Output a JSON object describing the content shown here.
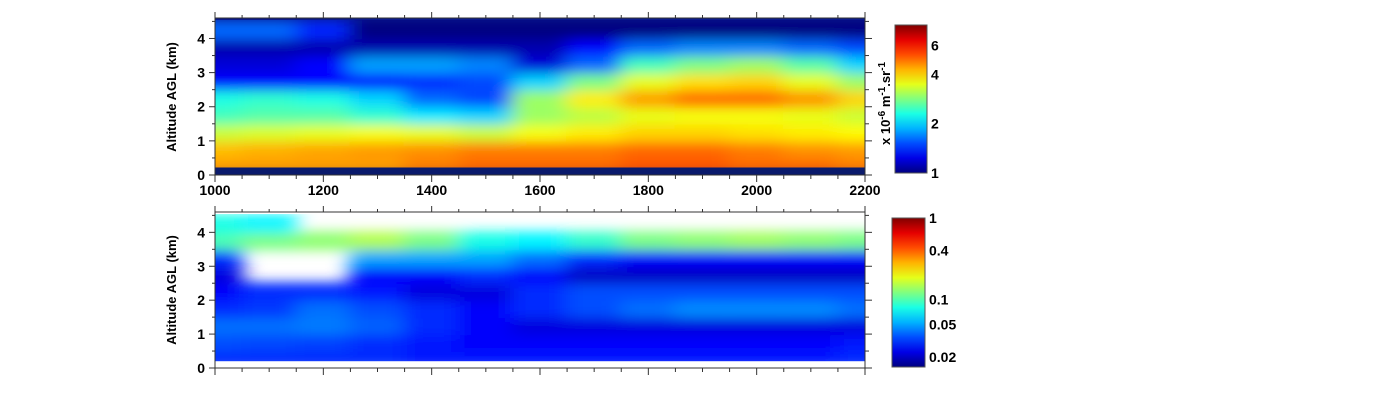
{
  "chart_data": [
    {
      "type": "heatmap",
      "ylabel": "Altitude AGL (km)",
      "xlabel": "",
      "xlim": [
        1000,
        2200
      ],
      "ylim": [
        0,
        4.6
      ],
      "xticks": [
        "1000",
        "1200",
        "1400",
        "1600",
        "1800",
        "2000",
        "2200"
      ],
      "yticks": [
        "0",
        "1",
        "2",
        "3",
        "4"
      ],
      "x": [
        1000,
        1100,
        1200,
        1300,
        1400,
        1500,
        1600,
        1700,
        1800,
        1900,
        2000,
        2100,
        2200
      ],
      "y": [
        0.25,
        0.75,
        1.25,
        1.75,
        2.25,
        2.75,
        3.25,
        3.75,
        4.25
      ],
      "values": [
        [
          4.5,
          4.5,
          4.5,
          4.5,
          4.8,
          5.0,
          5.0,
          5.0,
          5.2,
          5.2,
          5.0,
          5.0,
          4.8
        ],
        [
          4.2,
          4.3,
          4.4,
          4.5,
          4.6,
          4.8,
          4.8,
          4.8,
          5.0,
          5.0,
          4.8,
          4.6,
          4.5
        ],
        [
          3.3,
          3.4,
          3.5,
          3.6,
          3.5,
          3.3,
          3.6,
          3.8,
          4.0,
          4.0,
          3.9,
          3.8,
          3.7
        ],
        [
          2.5,
          2.6,
          2.6,
          2.4,
          2.1,
          2.0,
          3.0,
          3.2,
          3.5,
          3.6,
          3.6,
          3.5,
          3.3
        ],
        [
          2.3,
          2.4,
          2.3,
          2.0,
          1.6,
          1.5,
          3.0,
          3.8,
          4.5,
          5.0,
          5.0,
          4.6,
          4.0
        ],
        [
          1.3,
          1.3,
          1.3,
          1.3,
          1.4,
          1.5,
          2.0,
          2.8,
          3.5,
          3.9,
          4.0,
          3.5,
          3.0
        ],
        [
          1.2,
          1.2,
          1.3,
          1.8,
          1.8,
          1.7,
          1.2,
          1.6,
          2.5,
          2.8,
          3.0,
          2.6,
          2.0
        ],
        [
          1.1,
          1.1,
          1.1,
          1.1,
          1.1,
          1.1,
          1.1,
          1.3,
          1.6,
          1.7,
          1.7,
          1.6,
          1.5
        ],
        [
          1.6,
          1.6,
          1.4,
          1.0,
          1.0,
          1.0,
          1.0,
          1.0,
          1.0,
          1.0,
          1.0,
          1.0,
          1.0
        ]
      ],
      "colorbar": {
        "label": "x 10-6 m-1.sr-1",
        "ticks": [
          "1",
          "2",
          "4",
          "6"
        ],
        "range": [
          1,
          8
        ],
        "scale": "log",
        "colormap": "jet"
      }
    },
    {
      "type": "heatmap",
      "ylabel": "Altitude AGL (km)",
      "xlabel": "",
      "xlim": [
        1000,
        2200
      ],
      "ylim": [
        0,
        4.6
      ],
      "yticks": [
        "0",
        "1",
        "2",
        "3",
        "4"
      ],
      "x": [
        1000,
        1100,
        1200,
        1300,
        1400,
        1500,
        1600,
        1700,
        1800,
        1900,
        2000,
        2100,
        2200
      ],
      "y": [
        0.25,
        0.75,
        1.25,
        1.75,
        2.25,
        2.75,
        3.25,
        3.75,
        4.25
      ],
      "values": [
        [
          0.03,
          0.03,
          0.03,
          0.03,
          0.028,
          0.028,
          0.028,
          0.028,
          0.028,
          0.028,
          0.028,
          0.028,
          0.03
        ],
        [
          0.035,
          0.034,
          0.033,
          0.03,
          0.028,
          0.025,
          0.025,
          0.025,
          0.025,
          0.025,
          0.025,
          0.025,
          0.028
        ],
        [
          0.04,
          0.04,
          0.042,
          0.038,
          0.03,
          0.025,
          0.022,
          0.022,
          0.022,
          0.022,
          0.022,
          0.022,
          0.022
        ],
        [
          0.03,
          0.032,
          0.04,
          0.035,
          0.03,
          0.025,
          0.03,
          0.035,
          0.04,
          0.045,
          0.045,
          0.045,
          0.04
        ],
        [
          0.025,
          0.03,
          0.03,
          0.028,
          0.022,
          0.022,
          0.03,
          0.035,
          0.035,
          0.035,
          0.035,
          0.035,
          0.035
        ],
        [
          0.022,
          null,
          null,
          0.025,
          0.025,
          0.03,
          0.025,
          0.02,
          0.02,
          0.02,
          0.02,
          0.02,
          0.02
        ],
        [
          0.03,
          null,
          null,
          0.05,
          0.05,
          0.05,
          0.04,
          0.03,
          0.025,
          0.025,
          0.025,
          0.025,
          0.025
        ],
        [
          0.1,
          0.12,
          0.13,
          0.15,
          0.12,
          0.08,
          0.07,
          0.09,
          0.12,
          0.13,
          0.14,
          0.13,
          0.12
        ],
        [
          0.08,
          0.07,
          null,
          null,
          null,
          null,
          null,
          null,
          null,
          null,
          null,
          null,
          null
        ]
      ],
      "colorbar": {
        "ticks": [
          "0.02",
          "0.05",
          "0.1",
          "0.4",
          "1"
        ],
        "range": [
          0.015,
          1
        ],
        "scale": "log",
        "colormap": "jet"
      }
    }
  ]
}
